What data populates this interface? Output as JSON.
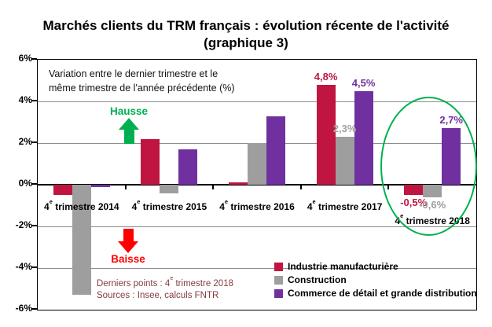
{
  "title": {
    "line1": "Marchés clients du TRM français : évolution récente de l'activité",
    "line2": "(graphique 3)"
  },
  "note": {
    "line1": "Variation entre le dernier trimestre et le",
    "line2": "même trimestre de l'année précédente (%)"
  },
  "arrows": {
    "up_label": "Hausse",
    "down_label": "Baisse"
  },
  "footnote": {
    "line1": "Derniers points : 4e trimestre 2018",
    "line2": "Sources : Insee, calculs FNTR"
  },
  "colors": {
    "industry_red": "#C01540",
    "construction_gray": "#9E9E9E",
    "commerce_purple": "#7030A0",
    "hausse_green": "#00B050",
    "baisse_red": "#FF0000",
    "footnote_maroon": "#833C3C",
    "gridline_gray": "#8C8C8C"
  },
  "chart_data": {
    "type": "bar",
    "title": "Marchés clients du TRM français : évolution récente de l'activité (graphique 3)",
    "subtitle": "Variation entre le dernier trimestre et le même trimestre de l'année précédente (%)",
    "categories": [
      "4e trimestre 2014",
      "4e trimestre 2015",
      "4e trimestre 2016",
      "4e trimestre 2017",
      "4e trimestre 2018"
    ],
    "series": [
      {
        "name": "Industrie manufacturière",
        "color": "#C01540",
        "values": [
          -0.5,
          2.2,
          0.1,
          4.8,
          -0.5
        ],
        "labels": [
          null,
          null,
          null,
          "4,8%",
          "-0,5%"
        ]
      },
      {
        "name": "Construction",
        "color": "#9E9E9E",
        "values": [
          -5.3,
          -0.4,
          2.0,
          2.3,
          -0.6
        ],
        "labels": [
          null,
          null,
          null,
          "2,3%",
          "-0,6%"
        ]
      },
      {
        "name": "Commerce de détail et grande distribution",
        "color": "#7030A0",
        "values": [
          -0.1,
          1.7,
          3.3,
          4.5,
          2.7
        ],
        "labels": [
          null,
          null,
          null,
          "4,5%",
          "2,7%"
        ]
      }
    ],
    "ylim": [
      -6,
      6
    ],
    "yticks": [
      "6%",
      "4%",
      "2%",
      "0%",
      "-2%",
      "-4%",
      "-6%"
    ],
    "ytick_values": [
      6,
      4,
      2,
      0,
      -2,
      -4,
      -6
    ],
    "grid": true,
    "legend_position": "bottom-right",
    "highlight": {
      "type": "ellipse",
      "target": "4e trimestre 2018",
      "color": "#00B050"
    }
  }
}
